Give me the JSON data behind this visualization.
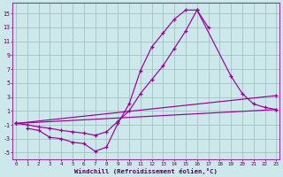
{
  "xlabel": "Windchill (Refroidissement éolien,°C)",
  "bg_color": "#cce8ea",
  "line_color": "#990099",
  "grid_color": "#99bbbb",
  "spine_color": "#993399",
  "x_ticks": [
    0,
    1,
    2,
    3,
    4,
    5,
    6,
    7,
    8,
    9,
    10,
    11,
    12,
    13,
    14,
    15,
    16,
    17,
    18,
    19,
    20,
    21,
    22,
    23
  ],
  "y_ticks": [
    -5,
    -3,
    -1,
    1,
    3,
    5,
    7,
    9,
    11,
    13,
    15
  ],
  "ylim": [
    -6.0,
    16.5
  ],
  "xlim": [
    -0.3,
    23.3
  ],
  "curve1_x": [
    1,
    2,
    3,
    4,
    5,
    6,
    7,
    8,
    9,
    10,
    11,
    12,
    13,
    14,
    15,
    16,
    17
  ],
  "curve1_y": [
    -1.5,
    -1.8,
    -2.8,
    -3.0,
    -3.5,
    -3.7,
    -4.8,
    -4.2,
    -0.8,
    2.0,
    6.8,
    10.2,
    12.2,
    14.2,
    15.5,
    15.5,
    13.0
  ],
  "curve2_x": [
    0,
    1,
    2,
    3,
    4,
    5,
    6,
    7,
    8,
    9,
    10,
    11,
    12,
    13,
    14,
    15,
    16,
    19,
    20,
    21,
    22,
    23
  ],
  "curve2_y": [
    -0.8,
    -1.0,
    -1.3,
    -1.5,
    -1.8,
    -2.0,
    -2.2,
    -2.5,
    -2.0,
    -0.5,
    1.0,
    3.5,
    5.5,
    7.5,
    10.0,
    12.5,
    15.5,
    6.0,
    3.5,
    2.0,
    1.5,
    1.2
  ],
  "curve3_x": [
    0,
    23
  ],
  "curve3_y": [
    -0.8,
    3.2
  ],
  "curve4_x": [
    0,
    23
  ],
  "curve4_y": [
    -0.8,
    1.2
  ]
}
